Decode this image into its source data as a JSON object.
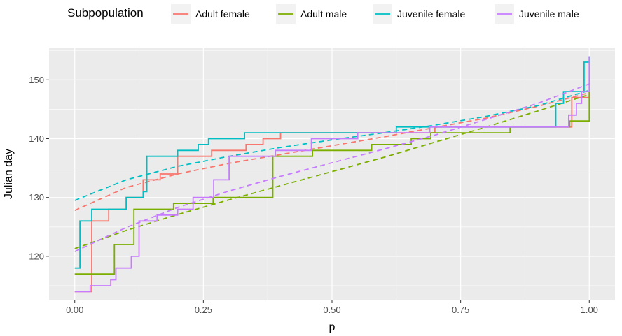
{
  "chart_data": {
    "type": "line",
    "xlabel": "p",
    "ylabel": "Julian day",
    "xlim": [
      -0.05,
      1.05
    ],
    "ylim": [
      112.5,
      155.5
    ],
    "x_ticks": [
      0,
      0.25,
      0.5,
      0.75,
      1.0
    ],
    "x_tick_labels": [
      "0.00",
      "0.25",
      "0.50",
      "0.75",
      "1.00"
    ],
    "y_ticks": [
      120,
      130,
      140,
      150
    ],
    "y_tick_labels": [
      "120",
      "130",
      "140",
      "150"
    ],
    "grid": true,
    "legend": {
      "title": "Subpopulation",
      "position": "top",
      "entries": [
        "Adult female",
        "Adult male",
        "Juvenile female",
        "Juvenile male"
      ]
    },
    "series": [
      {
        "name": "Adult female",
        "color": "#F8766D",
        "empirical_step": [
          [
            0,
            114
          ],
          [
            0.033,
            126
          ],
          [
            0.066,
            128
          ],
          [
            0.1,
            130
          ],
          [
            0.133,
            133
          ],
          [
            0.166,
            134
          ],
          [
            0.2,
            137
          ],
          [
            0.266,
            138
          ],
          [
            0.333,
            139
          ],
          [
            0.366,
            140
          ],
          [
            0.4,
            141
          ],
          [
            0.6,
            141
          ],
          [
            0.7,
            142
          ],
          [
            0.966,
            147
          ],
          [
            1.0,
            148
          ]
        ],
        "fitted_dashed": [
          [
            0,
            127.8
          ],
          [
            0.1,
            131.7
          ],
          [
            0.2,
            134.0
          ],
          [
            0.3,
            135.8
          ],
          [
            0.4,
            137.3
          ],
          [
            0.5,
            138.8
          ],
          [
            0.6,
            140.3
          ],
          [
            0.7,
            141.9
          ],
          [
            0.8,
            143.5
          ],
          [
            0.9,
            145.5
          ],
          [
            1.0,
            147.8
          ]
        ]
      },
      {
        "name": "Adult male",
        "color": "#7CAE00",
        "empirical_step": [
          [
            0,
            117
          ],
          [
            0.077,
            122
          ],
          [
            0.115,
            128
          ],
          [
            0.192,
            129
          ],
          [
            0.269,
            130
          ],
          [
            0.385,
            137
          ],
          [
            0.462,
            138
          ],
          [
            0.577,
            139
          ],
          [
            0.654,
            140
          ],
          [
            0.692,
            141
          ],
          [
            0.846,
            142
          ],
          [
            0.962,
            143
          ],
          [
            1.0,
            148
          ]
        ],
        "fitted_dashed": [
          [
            0,
            121.3
          ],
          [
            0.1,
            124.4
          ],
          [
            0.2,
            127.1
          ],
          [
            0.3,
            129.6
          ],
          [
            0.4,
            132.0
          ],
          [
            0.5,
            134.4
          ],
          [
            0.6,
            136.8
          ],
          [
            0.7,
            139.4
          ],
          [
            0.8,
            142.0
          ],
          [
            0.9,
            144.7
          ],
          [
            1.0,
            147.5
          ]
        ]
      },
      {
        "name": "Juvenile female",
        "color": "#00BFC4",
        "empirical_step": [
          [
            0,
            118
          ],
          [
            0.01,
            126
          ],
          [
            0.033,
            128
          ],
          [
            0.1,
            130
          ],
          [
            0.133,
            131
          ],
          [
            0.14,
            137
          ],
          [
            0.2,
            138
          ],
          [
            0.24,
            139
          ],
          [
            0.26,
            140
          ],
          [
            0.33,
            141
          ],
          [
            0.625,
            142
          ],
          [
            0.935,
            146
          ],
          [
            0.95,
            148
          ],
          [
            0.99,
            153
          ],
          [
            1.0,
            154
          ]
        ],
        "fitted_dashed": [
          [
            0,
            129.5
          ],
          [
            0.1,
            133.0
          ],
          [
            0.2,
            135.3
          ],
          [
            0.3,
            137.0
          ],
          [
            0.4,
            138.5
          ],
          [
            0.5,
            139.8
          ],
          [
            0.6,
            141.0
          ],
          [
            0.7,
            142.3
          ],
          [
            0.8,
            143.8
          ],
          [
            0.9,
            145.6
          ],
          [
            1.0,
            148.2
          ]
        ]
      },
      {
        "name": "Juvenile male",
        "color": "#C77CFF",
        "empirical_step": [
          [
            0,
            114
          ],
          [
            0.03,
            115
          ],
          [
            0.07,
            116
          ],
          [
            0.08,
            118
          ],
          [
            0.11,
            120
          ],
          [
            0.125,
            126
          ],
          [
            0.16,
            127
          ],
          [
            0.2,
            128
          ],
          [
            0.23,
            130
          ],
          [
            0.27,
            133
          ],
          [
            0.3,
            137
          ],
          [
            0.39,
            138
          ],
          [
            0.46,
            140
          ],
          [
            0.55,
            141
          ],
          [
            0.69,
            142
          ],
          [
            0.96,
            144
          ],
          [
            0.975,
            146
          ],
          [
            0.985,
            148
          ],
          [
            1.0,
            154
          ]
        ],
        "fitted_dashed": [
          [
            0,
            120.8
          ],
          [
            0.1,
            124.9
          ],
          [
            0.2,
            128.3
          ],
          [
            0.3,
            131.1
          ],
          [
            0.4,
            133.6
          ],
          [
            0.5,
            135.9
          ],
          [
            0.6,
            138.2
          ],
          [
            0.7,
            140.6
          ],
          [
            0.8,
            143.3
          ],
          [
            0.9,
            146.0
          ],
          [
            1.0,
            149.3
          ]
        ]
      }
    ]
  }
}
